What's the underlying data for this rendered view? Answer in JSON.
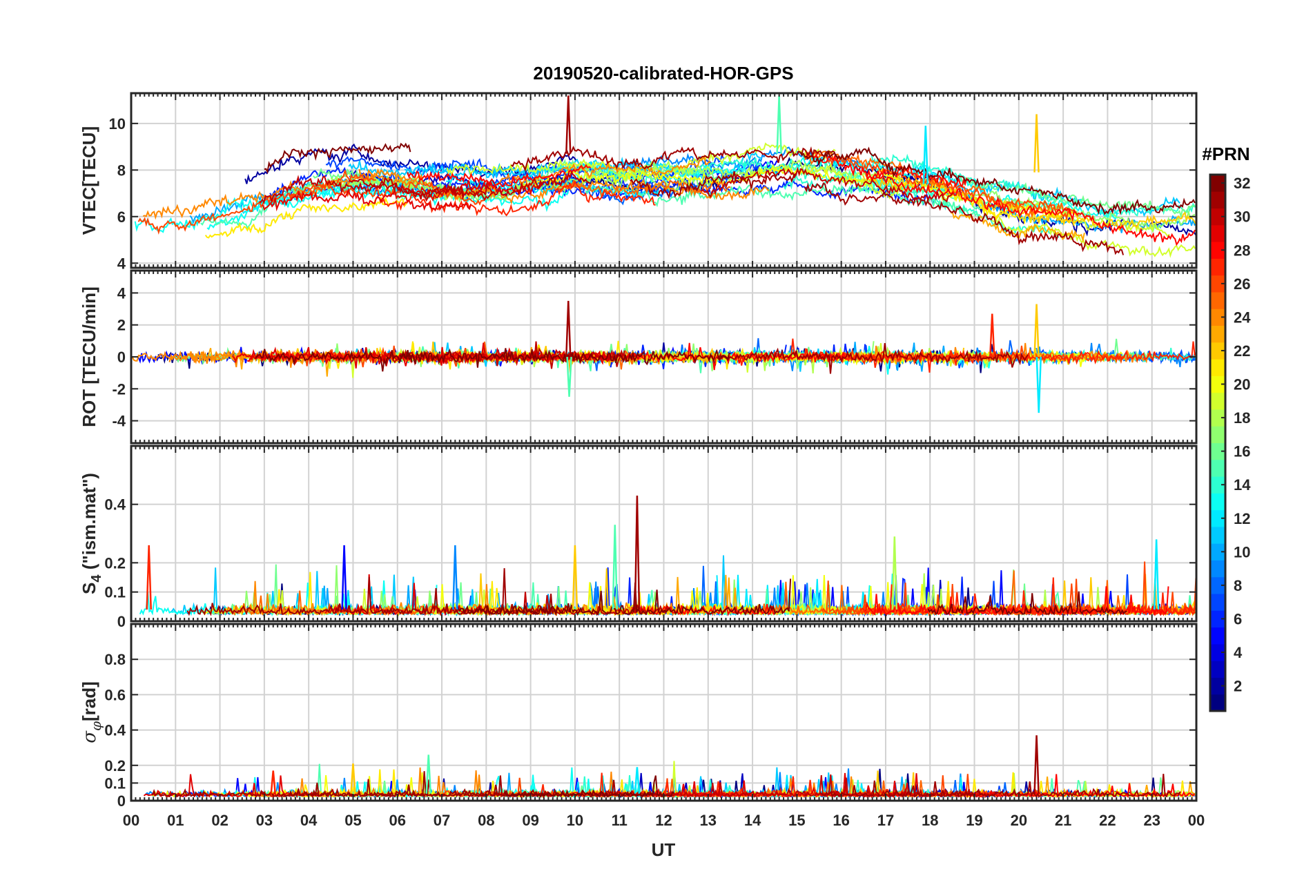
{
  "chart_data": {
    "type": "line",
    "title": "20190520-calibrated-HOR-GPS",
    "xlabel": "UT",
    "x_ticks": [
      "00",
      "01",
      "02",
      "03",
      "04",
      "05",
      "06",
      "07",
      "08",
      "09",
      "10",
      "11",
      "12",
      "13",
      "14",
      "15",
      "16",
      "17",
      "18",
      "19",
      "20",
      "21",
      "22",
      "23",
      "00"
    ],
    "x_range_hours": [
      0,
      24
    ],
    "grid": true,
    "colorbar": {
      "title": "#PRN",
      "range": [
        1,
        32
      ],
      "ticks": [
        "2",
        "4",
        "6",
        "8",
        "10",
        "12",
        "14",
        "16",
        "18",
        "20",
        "22",
        "24",
        "26",
        "28",
        "30",
        "32"
      ],
      "colormap": "jet",
      "placement": "right"
    },
    "panels": [
      {
        "id": "vtec",
        "ylabel": "VTEC[TECU]",
        "ylim": [
          3.8,
          11.3
        ],
        "y_ticks": [
          "4",
          "6",
          "8",
          "10"
        ],
        "baseline_by_hour": [
          6.2,
          6.2,
          6.5,
          7.0,
          7.6,
          7.8,
          7.6,
          7.4,
          7.3,
          7.4,
          7.8,
          7.6,
          7.5,
          7.6,
          7.8,
          8.0,
          7.8,
          7.5,
          7.2,
          6.7,
          6.2,
          5.9,
          5.5,
          5.3,
          5.4
        ],
        "series_spread": 1.6,
        "notable_peaks": [
          {
            "hour": 9.85,
            "value": 11.2
          },
          {
            "hour": 14.6,
            "value": 11.2
          },
          {
            "hour": 20.4,
            "value": 10.4
          },
          {
            "hour": 17.9,
            "value": 9.9
          }
        ]
      },
      {
        "id": "rot",
        "ylabel": "ROT [TECU/min]",
        "ylim": [
          -5.4,
          5.4
        ],
        "y_ticks": [
          "-4",
          "-2",
          "0",
          "2",
          "4"
        ],
        "typical_amplitude": 0.6,
        "notable_peaks": [
          {
            "hour": 9.85,
            "value": 3.5
          },
          {
            "hour": 9.87,
            "value": -2.5
          },
          {
            "hour": 20.4,
            "value": 3.3
          },
          {
            "hour": 20.45,
            "value": -3.5
          },
          {
            "hour": 19.4,
            "value": 2.7
          }
        ]
      },
      {
        "id": "s4",
        "ylabel": "S4 (\"ism.mat\")",
        "ylabel_main": "S",
        "ylabel_sub": "4",
        "ylabel_rest": " (\"ism.mat\")",
        "ylim": [
          0,
          0.6
        ],
        "y_ticks": [
          "0",
          "0.1",
          "0.2",
          "0.4"
        ],
        "typical_level": 0.04,
        "notable_peaks": [
          {
            "hour": 11.4,
            "value": 0.43
          },
          {
            "hour": 10.9,
            "value": 0.33
          },
          {
            "hour": 10.0,
            "value": 0.26
          },
          {
            "hour": 23.1,
            "value": 0.28
          },
          {
            "hour": 0.4,
            "value": 0.26
          },
          {
            "hour": 4.8,
            "value": 0.26
          },
          {
            "hour": 17.2,
            "value": 0.29
          },
          {
            "hour": 7.3,
            "value": 0.26
          }
        ]
      },
      {
        "id": "sigphi",
        "ylabel": "σφ[rad]",
        "ylabel_main": "σ",
        "ylabel_sub": "φ",
        "ylabel_rest": "[rad]",
        "ylim": [
          0,
          1.0
        ],
        "y_ticks": [
          "0",
          "0.1",
          "0.2",
          "0.4",
          "0.6",
          "0.8"
        ],
        "typical_level": 0.04,
        "notable_peaks": [
          {
            "hour": 20.4,
            "value": 0.37
          },
          {
            "hour": 6.7,
            "value": 0.26
          },
          {
            "hour": 5.0,
            "value": 0.21
          },
          {
            "hour": 11.4,
            "value": 0.19
          },
          {
            "hour": 3.2,
            "value": 0.17
          }
        ]
      }
    ]
  }
}
